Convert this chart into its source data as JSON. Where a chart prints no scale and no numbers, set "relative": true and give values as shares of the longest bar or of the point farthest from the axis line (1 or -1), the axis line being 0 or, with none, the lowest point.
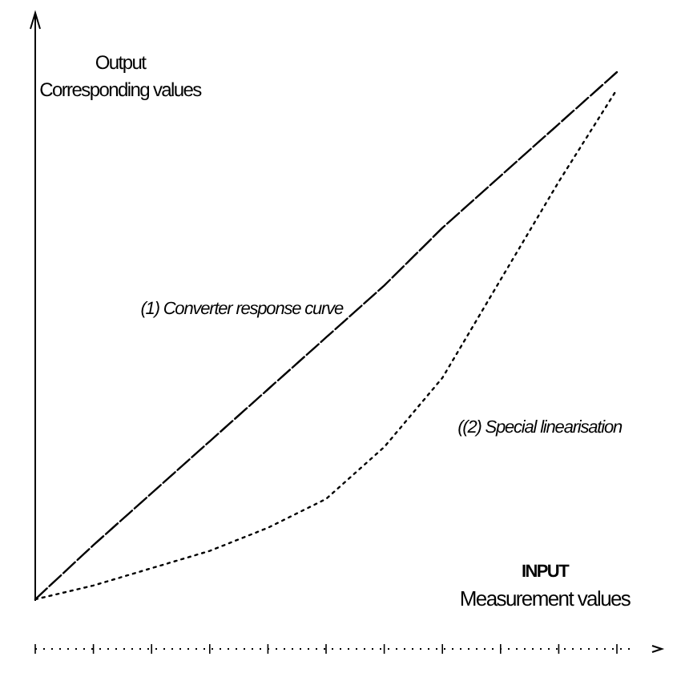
{
  "chart_data": {
    "type": "line",
    "relative": true,
    "xlabel": "INPUT\nMeasurement values",
    "ylabel": "Output\nCorresponding values",
    "categories": [
      null,
      null,
      null,
      null,
      null,
      null,
      null,
      null,
      null,
      null,
      null
    ],
    "marker": "none",
    "series": [
      {
        "name": "(1) Converter response curve",
        "color": "#000000",
        "line_style": "dashed",
        "values": [
          0.086,
          0.18,
          0.27,
          0.36,
          0.45,
          0.54,
          0.63,
          0.73,
          0.82,
          0.91,
          1
        ]
      },
      {
        "name": "((2) Special linearisation",
        "color": "#000000",
        "line_style": "dotted",
        "values": [
          0.086,
          0.11,
          0.14,
          0.17,
          0.21,
          0.26,
          0.35,
          0.47,
          0.64,
          0.81,
          0.97
        ]
      }
    ]
  }
}
